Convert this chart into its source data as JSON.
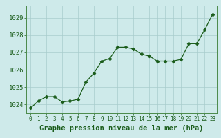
{
  "x": [
    0,
    1,
    2,
    3,
    4,
    5,
    6,
    7,
    8,
    9,
    10,
    11,
    12,
    13,
    14,
    15,
    16,
    17,
    18,
    19,
    20,
    21,
    22,
    23
  ],
  "y": [
    1023.8,
    1024.2,
    1024.45,
    1024.45,
    1024.15,
    1024.2,
    1024.3,
    1025.3,
    1025.8,
    1026.5,
    1026.65,
    1027.3,
    1027.3,
    1027.2,
    1026.9,
    1026.8,
    1026.5,
    1026.5,
    1026.5,
    1026.6,
    1027.5,
    1027.5,
    1028.3,
    1029.2
  ],
  "line_color": "#1a5c1a",
  "marker": "D",
  "marker_size": 2.5,
  "bg_color": "#ceeaea",
  "grid_color": "#a8cccc",
  "xlabel": "Graphe pression niveau de la mer (hPa)",
  "xlabel_fontsize": 7.5,
  "ylim": [
    1023.5,
    1029.7
  ],
  "yticks": [
    1024,
    1025,
    1026,
    1027,
    1028,
    1029
  ],
  "xticks": [
    0,
    1,
    2,
    3,
    4,
    5,
    6,
    7,
    8,
    9,
    10,
    11,
    12,
    13,
    14,
    15,
    16,
    17,
    18,
    19,
    20,
    21,
    22,
    23
  ],
  "ytick_fontsize": 6.5,
  "xtick_fontsize": 5.5,
  "tick_color": "#1a5c1a",
  "axis_color": "#4a7a4a",
  "spine_color": "#4a8a4a"
}
